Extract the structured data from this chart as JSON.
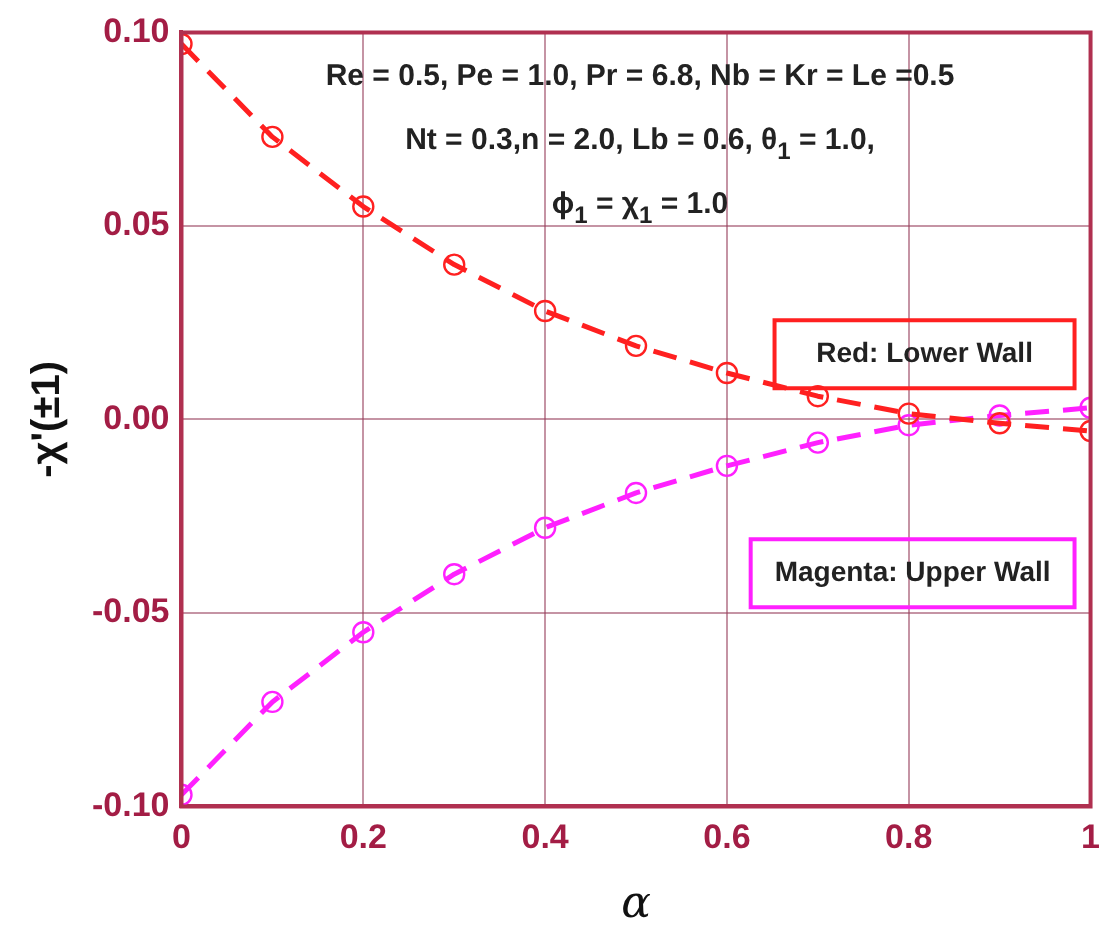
{
  "chart_data": {
    "type": "line",
    "xlabel": "α",
    "ylabel": "-χ'(±1)",
    "x": [
      0,
      0.1,
      0.2,
      0.3,
      0.4,
      0.5,
      0.6,
      0.7,
      0.8,
      0.9,
      1.0
    ],
    "series": [
      {
        "color": "#ff2020",
        "values": [
          0.097,
          0.073,
          0.055,
          0.04,
          0.028,
          0.019,
          0.012,
          0.006,
          0.0015,
          -0.001,
          -0.003
        ]
      },
      {
        "color": "#ff20ff",
        "values": [
          -0.097,
          -0.073,
          -0.055,
          -0.04,
          -0.028,
          -0.019,
          -0.012,
          -0.006,
          -0.0015,
          0.001,
          0.003
        ]
      }
    ],
    "xlim": [
      0,
      1
    ],
    "xticks": [
      0,
      0.2,
      0.4,
      0.6,
      0.8,
      1
    ],
    "ylim": [
      -0.1,
      0.1
    ],
    "yticks": [
      {
        "value": -0.1,
        "label": "-0.10"
      },
      {
        "value": -0.05,
        "label": "-0.05"
      },
      {
        "value": 0,
        "label": "0.00"
      },
      {
        "value": 0.05,
        "label": "0.05"
      },
      {
        "value": 0.1,
        "label": "0.10"
      }
    ],
    "annotations": [
      "Re = 0.5, Pe = 1.0, Pr = 6.8, Nb = Kr = Le =0.5",
      "Nt = 0.3,n = 2.0, Lb = 0.6, θ$_{1}$ = 1.0,",
      "ϕ$_{1}$ = χ$_{1}$ = 1.0",
      "Red: Lower Wall",
      "Magenta: Upper Wall"
    ],
    "grid": true,
    "legend": false,
    "marker": "circle",
    "line_style": "dashed"
  }
}
